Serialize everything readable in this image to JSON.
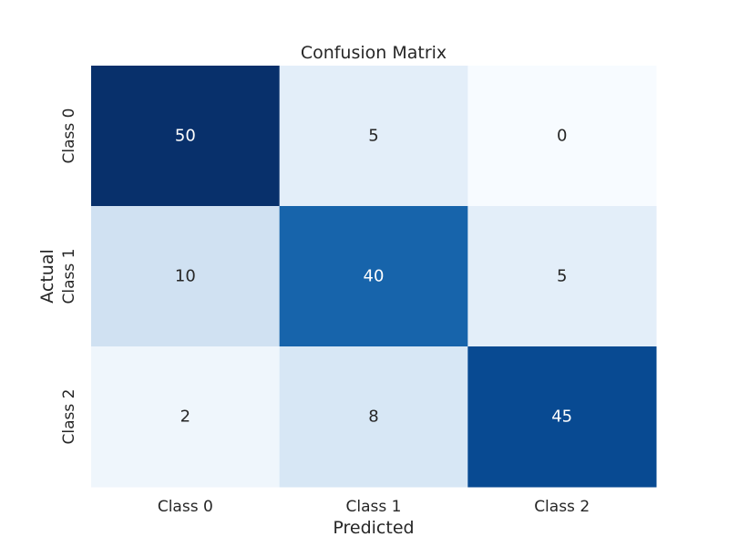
{
  "chart_data": {
    "type": "heatmap",
    "title": "Confusion Matrix",
    "xlabel": "Predicted",
    "ylabel": "Actual",
    "x_categories": [
      "Class 0",
      "Class 1",
      "Class 2"
    ],
    "y_categories": [
      "Class 0",
      "Class 1",
      "Class 2"
    ],
    "values": [
      [
        50,
        5,
        0
      ],
      [
        10,
        40,
        5
      ],
      [
        2,
        8,
        45
      ]
    ],
    "colormap": "Blues",
    "color_range": [
      0,
      50
    ],
    "colorbar": false,
    "annotations": true,
    "grid": false
  }
}
